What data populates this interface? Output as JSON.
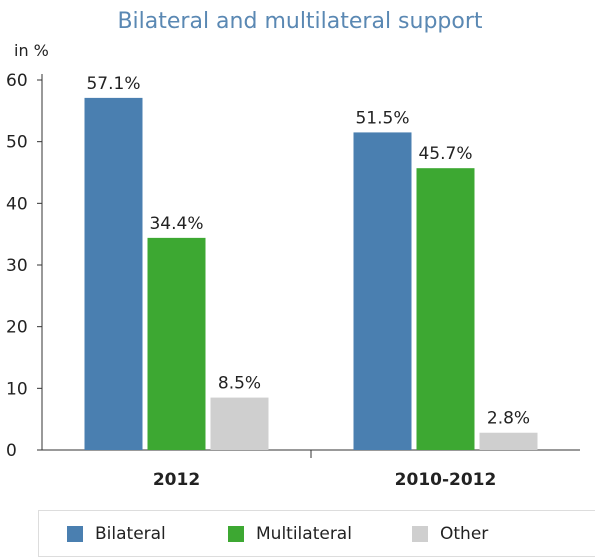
{
  "chart_data": {
    "type": "bar",
    "title": "Bilateral and multilateral support",
    "ylabel": "in %",
    "xlabel": "",
    "ylim": [
      0,
      60
    ],
    "yticks": [
      0,
      10,
      20,
      30,
      40,
      50,
      60
    ],
    "categories": [
      "2012",
      "2010-2012"
    ],
    "series": [
      {
        "name": "Bilateral",
        "values": [
          57.1,
          51.5
        ],
        "labels": [
          "57.1%",
          "51.5%"
        ],
        "color": "#4a7fb0"
      },
      {
        "name": "Multilateral",
        "values": [
          34.4,
          45.7
        ],
        "labels": [
          "34.4%",
          "45.7%"
        ],
        "color": "#3da832"
      },
      {
        "name": "Other",
        "values": [
          8.5,
          2.8
        ],
        "labels": [
          "8.5%",
          "2.8%"
        ],
        "color": "#cfcfcf"
      }
    ],
    "grid": false,
    "legend_position": "bottom"
  },
  "colors": {
    "title": "#5a88b3",
    "axis": "#333333",
    "text": "#222222"
  }
}
